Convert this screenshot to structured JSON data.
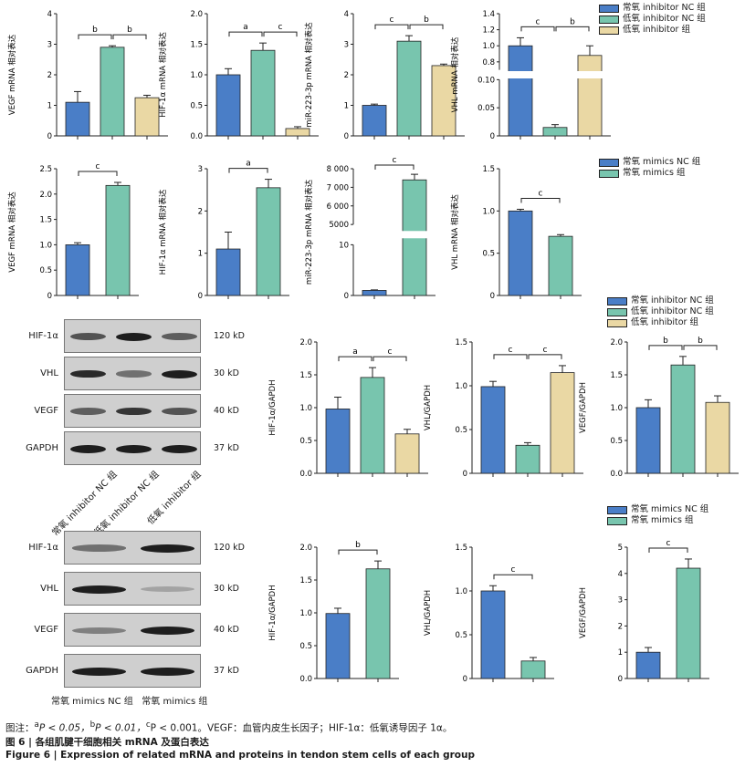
{
  "colors": {
    "nc": "#4a7ec7",
    "treat": "#78c5ae",
    "inhib": "#ead8a4",
    "axis": "#222222"
  },
  "legends": {
    "inhibitor": [
      "常氧 inhibitor NC 组",
      "低氧 inhibitor NC 组",
      "低氧 inhibitor 组"
    ],
    "mimics": [
      "常氧 mimics NC 组",
      "常氧 mimics 组"
    ]
  },
  "charts": [
    {
      "id": "r1c1",
      "ylabel": "VEGF mRNA 相对表达",
      "ticks": [
        "0",
        "1",
        "2",
        "3",
        "4"
      ],
      "ymax": 4,
      "values": [
        1.1,
        2.9,
        1.25
      ],
      "errs": [
        0.35,
        0.05,
        0.08
      ],
      "colors": [
        "nc",
        "treat",
        "inhib"
      ],
      "brackets": [
        {
          "from": 0,
          "to": 1,
          "label": "b"
        },
        {
          "from": 1,
          "to": 2,
          "label": "b"
        }
      ]
    },
    {
      "id": "r1c2",
      "ylabel": "HIF-1α mRNA 相对表达",
      "ticks": [
        "0.0",
        "0.5",
        "1.0",
        "1.5",
        "2.0"
      ],
      "ymax": 2,
      "values": [
        1.0,
        1.4,
        0.12
      ],
      "errs": [
        0.1,
        0.12,
        0.03
      ],
      "colors": [
        "nc",
        "treat",
        "inhib"
      ],
      "brackets": [
        {
          "from": 0,
          "to": 1,
          "label": "a"
        },
        {
          "from": 1,
          "to": 2,
          "label": "c"
        }
      ]
    },
    {
      "id": "r1c3",
      "ylabel": "miR-223-3p mRNA 相对表达",
      "ticks": [
        "0",
        "1",
        "2",
        "3",
        "4"
      ],
      "ymax": 4,
      "values": [
        1.0,
        3.1,
        2.3
      ],
      "errs": [
        0.04,
        0.18,
        0.05
      ],
      "colors": [
        "nc",
        "treat",
        "inhib"
      ],
      "brackets": [
        {
          "from": 0,
          "to": 1,
          "label": "c"
        },
        {
          "from": 1,
          "to": 2,
          "label": "b"
        }
      ]
    },
    {
      "id": "r1c4",
      "ylabel": "VHL mRNA 相对表达",
      "ticks": [
        "0",
        "0.05",
        "0.10",
        "0.8",
        "1.0",
        "1.2",
        "1.4"
      ],
      "ymax": 1.4,
      "values": [
        1.0,
        0.015,
        0.88
      ],
      "errs": [
        0.1,
        0.005,
        0.12
      ],
      "colors": [
        "nc",
        "treat",
        "inhib"
      ],
      "brackets": [
        {
          "from": 0,
          "to": 1,
          "label": "c"
        },
        {
          "from": 1,
          "to": 2,
          "label": "b"
        }
      ]
    },
    {
      "id": "r2c1",
      "ylabel": "VEGF mRNA 相对表达",
      "ticks": [
        "0",
        "0.5",
        "1.0",
        "1.5",
        "2.0",
        "2.5"
      ],
      "ymax": 2.5,
      "values": [
        1.0,
        2.17
      ],
      "errs": [
        0.04,
        0.06
      ],
      "colors": [
        "nc",
        "treat"
      ],
      "brackets": [
        {
          "from": 0,
          "to": 1,
          "label": "c"
        }
      ]
    },
    {
      "id": "r2c2",
      "ylabel": "HIF-1α mRNA 相对表达",
      "ticks": [
        "0",
        "1",
        "2",
        "3"
      ],
      "ymax": 3,
      "values": [
        1.1,
        2.55
      ],
      "errs": [
        0.4,
        0.2
      ],
      "colors": [
        "nc",
        "treat"
      ],
      "brackets": [
        {
          "from": 0,
          "to": 1,
          "label": "a"
        }
      ]
    },
    {
      "id": "r2c3",
      "ylabel": "miR-223-3p mRNA 相对表达",
      "ticks": [
        "0",
        "10",
        "5000",
        "6 000",
        "7 000",
        "8 000"
      ],
      "ymax": 8000,
      "values": [
        1.0,
        7400
      ],
      "errs": [
        0.1,
        300
      ],
      "colors": [
        "nc",
        "treat"
      ],
      "brackets": [
        {
          "from": 0,
          "to": 1,
          "label": "c"
        }
      ]
    },
    {
      "id": "r2c4",
      "ylabel": "VHL mRNA 相对表达",
      "ticks": [
        "0",
        "0.5",
        "1.0",
        "1.5"
      ],
      "ymax": 1.5,
      "values": [
        1.0,
        0.7
      ],
      "errs": [
        0.02,
        0.02
      ],
      "colors": [
        "nc",
        "treat"
      ],
      "brackets": [
        {
          "from": 0,
          "to": 1,
          "label": "c"
        }
      ]
    },
    {
      "id": "r3c1",
      "ylabel": "HIF-1α/GAPDH",
      "ticks": [
        "0.0",
        "0.5",
        "1.0",
        "1.5",
        "2.0"
      ],
      "ymax": 2,
      "values": [
        0.98,
        1.46,
        0.6
      ],
      "errs": [
        0.18,
        0.15,
        0.07
      ],
      "colors": [
        "nc",
        "treat",
        "inhib"
      ],
      "brackets": [
        {
          "from": 0,
          "to": 1,
          "label": "a"
        },
        {
          "from": 1,
          "to": 2,
          "label": "c"
        }
      ]
    },
    {
      "id": "r3c2",
      "ylabel": "VHL/GAPDH",
      "ticks": [
        "0",
        "0.5",
        "1.0",
        "1.5"
      ],
      "ymax": 1.5,
      "values": [
        0.99,
        0.32,
        1.15
      ],
      "errs": [
        0.06,
        0.03,
        0.08
      ],
      "colors": [
        "nc",
        "treat",
        "inhib"
      ],
      "brackets": [
        {
          "from": 0,
          "to": 1,
          "label": "c"
        },
        {
          "from": 1,
          "to": 2,
          "label": "c"
        }
      ]
    },
    {
      "id": "r3c3",
      "ylabel": "VEGF/GAPDH",
      "ticks": [
        "0.0",
        "0.5",
        "1.0",
        "1.5",
        "2.0"
      ],
      "ymax": 2,
      "values": [
        1.0,
        1.65,
        1.08
      ],
      "errs": [
        0.12,
        0.13,
        0.1
      ],
      "colors": [
        "nc",
        "treat",
        "inhib"
      ],
      "brackets": [
        {
          "from": 0,
          "to": 1,
          "label": "b"
        },
        {
          "from": 1,
          "to": 2,
          "label": "b"
        }
      ]
    },
    {
      "id": "r4c1",
      "ylabel": "HIF-1α/GAPDH",
      "ticks": [
        "0.0",
        "0.5",
        "1.0",
        "1.5",
        "2.0"
      ],
      "ymax": 2,
      "values": [
        0.99,
        1.67
      ],
      "errs": [
        0.08,
        0.12
      ],
      "colors": [
        "nc",
        "treat"
      ],
      "brackets": [
        {
          "from": 0,
          "to": 1,
          "label": "b"
        }
      ]
    },
    {
      "id": "r4c2",
      "ylabel": "VHL/GAPDH",
      "ticks": [
        "0",
        "0.5",
        "1.0",
        "1.5"
      ],
      "ymax": 1.5,
      "values": [
        1.0,
        0.2
      ],
      "errs": [
        0.06,
        0.04
      ],
      "colors": [
        "nc",
        "treat"
      ],
      "brackets": [
        {
          "from": 0,
          "to": 1,
          "label": "c"
        }
      ]
    },
    {
      "id": "r4c3",
      "ylabel": "VEGF/GAPDH",
      "ticks": [
        "0",
        "1",
        "2",
        "3",
        "4",
        "5"
      ],
      "ymax": 5,
      "values": [
        1.0,
        4.2
      ],
      "errs": [
        0.18,
        0.35
      ],
      "colors": [
        "nc",
        "treat"
      ],
      "brackets": [
        {
          "from": 0,
          "to": 1,
          "label": "c"
        }
      ]
    }
  ],
  "blots": {
    "inhibitor": {
      "rows": [
        {
          "label": "HIF-1α",
          "kd": "120 kD",
          "bands": [
            0.75,
            1.0,
            0.7
          ]
        },
        {
          "label": "VHL",
          "kd": "30 kD",
          "bands": [
            0.95,
            0.6,
            1.0
          ]
        },
        {
          "label": "VEGF",
          "kd": "40 kD",
          "bands": [
            0.7,
            0.9,
            0.75
          ]
        },
        {
          "label": "GAPDH",
          "kd": "37 kD",
          "bands": [
            1.0,
            1.0,
            1.0
          ]
        }
      ],
      "lanes": [
        "常氧 inhibitor NC 组",
        "低氧 inhibitor NC 组",
        "低氧 inhibitor 组"
      ]
    },
    "mimics": {
      "rows": [
        {
          "label": "HIF-1α",
          "kd": "120 kD",
          "bands": [
            0.6,
            1.0
          ]
        },
        {
          "label": "VHL",
          "kd": "30 kD",
          "bands": [
            1.0,
            0.25
          ]
        },
        {
          "label": "VEGF",
          "kd": "40 kD",
          "bands": [
            0.5,
            1.0
          ]
        },
        {
          "label": "GAPDH",
          "kd": "37 kD",
          "bands": [
            1.0,
            1.0
          ]
        }
      ],
      "lanes": "常氧 mimics NC 组   常氧 mimics 组"
    }
  },
  "caption": {
    "note_prefix": "图注：",
    "note_a": "a",
    "note_a_text": "P < 0.05，",
    "note_b": "b",
    "note_b_text": "P < 0.01，",
    "note_c": "c",
    "note_c_text": "P < 0.001。VEGF：血管内皮生长因子；HIF-1α：低氧诱导因子 1α。",
    "title_cn": "图 6  |  各组肌腱干细胞相关 mRNA 及蛋白表达",
    "title_en": "Figure 6  |  Expression of related mRNA and proteins in tendon stem cells of each group"
  }
}
